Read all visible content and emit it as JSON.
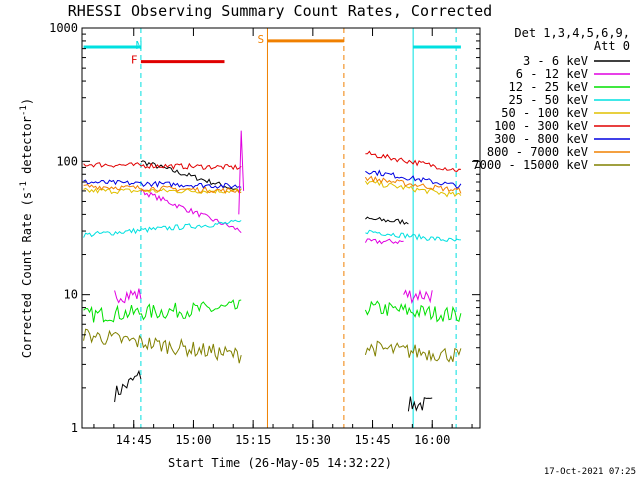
{
  "chart_data": {
    "type": "line",
    "title": "RHESSI Observing Summary Count Rates, Corrected",
    "xlabel": "Start Time (26-May-05 14:32:22)",
    "ylabel_main": "Corrected Count Rate (s",
    "ylabel_sup1": "-1",
    "ylabel_mid": " detector",
    "ylabel_sup2": "-1",
    "ylabel_end": ")",
    "y_scale": "log",
    "ylim": [
      1,
      1000
    ],
    "xlim": [
      "14:32",
      "16:12"
    ],
    "x_ticks": [
      "14:45",
      "15:00",
      "15:15",
      "15:30",
      "15:45",
      "16:00"
    ],
    "y_ticks": [
      "1",
      "10",
      "100",
      "1000"
    ],
    "detectors_line1": "Det 1,3,4,5,6,9,",
    "detectors_line2": "Att 0",
    "timestamp": "17-Oct-2021 07:25",
    "legend_position": "right",
    "series": [
      {
        "name": "3 - 6 keV",
        "color": "#000000",
        "segments": [
          {
            "t0": 14.67,
            "t1": 14.78,
            "v0": 1.8,
            "v1": 2.5
          },
          {
            "t0": 14.78,
            "t1": 15.2,
            "v0": 100,
            "v1": 60
          },
          {
            "t0": 15.72,
            "t1": 15.9,
            "v0": 37,
            "v1": 35
          },
          {
            "t0": 15.9,
            "t1": 16.0,
            "v0": 1.5,
            "v1": 1.5
          }
        ]
      },
      {
        "name": "6 - 12 keV",
        "color": "#e000e0",
        "segments": [
          {
            "t0": 14.67,
            "t1": 14.78,
            "v0": 10,
            "v1": 10
          },
          {
            "t0": 14.78,
            "t1": 15.2,
            "v0": 60,
            "v1": 30
          },
          {
            "t0": 15.72,
            "t1": 15.88,
            "v0": 25,
            "v1": 25
          },
          {
            "t0": 15.88,
            "t1": 16.0,
            "v0": 10,
            "v1": 10
          }
        ]
      },
      {
        "name": "12 - 25 keV",
        "color": "#00e000",
        "segments": [
          {
            "t0": 14.54,
            "t1": 15.2,
            "v0": 7,
            "v1": 8
          },
          {
            "t0": 15.72,
            "t1": 16.12,
            "v0": 8,
            "v1": 7
          }
        ]
      },
      {
        "name": "25 - 50 keV",
        "color": "#00e0e0",
        "segments": [
          {
            "t0": 14.54,
            "t1": 15.2,
            "v0": 28,
            "v1": 35
          },
          {
            "t0": 15.72,
            "t1": 16.12,
            "v0": 30,
            "v1": 25
          }
        ]
      },
      {
        "name": "50 - 100 keV",
        "color": "#e0c000",
        "segments": [
          {
            "t0": 14.54,
            "t1": 15.2,
            "v0": 60,
            "v1": 60
          },
          {
            "t0": 15.72,
            "t1": 16.12,
            "v0": 70,
            "v1": 55
          }
        ]
      },
      {
        "name": "100 - 300 keV",
        "color": "#e00000",
        "segments": [
          {
            "t0": 14.54,
            "t1": 15.2,
            "v0": 95,
            "v1": 90
          },
          {
            "t0": 15.72,
            "t1": 16.12,
            "v0": 115,
            "v1": 85
          }
        ]
      },
      {
        "name": "300 - 800 keV",
        "color": "#0000e0",
        "segments": [
          {
            "t0": 14.54,
            "t1": 15.2,
            "v0": 70,
            "v1": 65
          },
          {
            "t0": 15.72,
            "t1": 16.12,
            "v0": 85,
            "v1": 65
          }
        ]
      },
      {
        "name": "800 - 7000 keV",
        "color": "#f08000",
        "segments": [
          {
            "t0": 14.54,
            "t1": 15.2,
            "v0": 65,
            "v1": 60
          },
          {
            "t0": 15.72,
            "t1": 16.12,
            "v0": 75,
            "v1": 60
          }
        ]
      },
      {
        "name": "7000 - 15000 keV",
        "color": "#808000",
        "segments": [
          {
            "t0": 14.54,
            "t1": 15.2,
            "v0": 5,
            "v1": 3.5
          },
          {
            "t0": 15.72,
            "t1": 16.12,
            "v0": 4,
            "v1": 3.5
          }
        ]
      }
    ],
    "flags": [
      {
        "label": "N",
        "color": "#00e0e0",
        "y": 720,
        "t_start": 14.54,
        "t_end": 14.78,
        "t_start2": 15.92,
        "t_end2": 16.12
      },
      {
        "label": "F",
        "color": "#e00000",
        "y": 560,
        "t_start": 14.78,
        "t_end": 15.13
      },
      {
        "label": "S",
        "color": "#f08000",
        "y": 800,
        "t_start": 15.31,
        "t_end": 15.63
      }
    ],
    "verticals": [
      {
        "time": 14.78,
        "color": "#00e0e0",
        "style": "dashed"
      },
      {
        "time": 15.92,
        "color": "#00e0e0",
        "style": "solid"
      },
      {
        "time": 16.1,
        "color": "#00e0e0",
        "style": "dashed"
      },
      {
        "time": 15.31,
        "color": "#f08000",
        "style": "solid"
      },
      {
        "time": 15.63,
        "color": "#f08000",
        "style": "dashed"
      }
    ],
    "spike": {
      "time": 15.2,
      "color": "#e000e0",
      "value": 170
    }
  }
}
